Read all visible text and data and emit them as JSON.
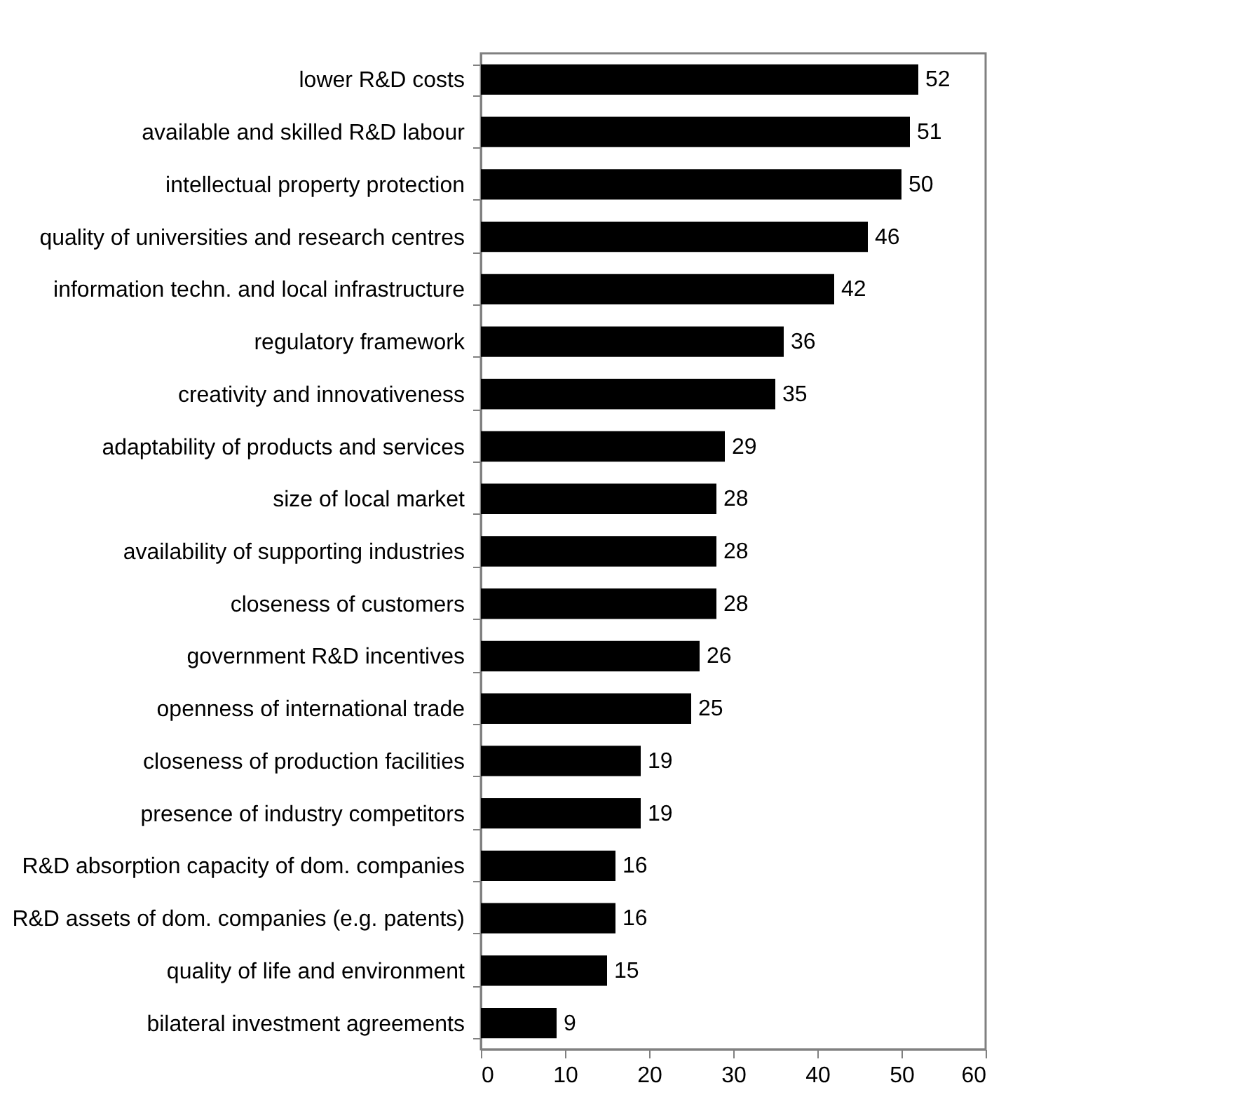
{
  "chart_data": {
    "type": "bar",
    "orientation": "horizontal",
    "categories": [
      "lower R&D costs",
      "available and skilled R&D labour",
      "intellectual property protection",
      "quality of universities and research centres",
      "information techn. and local infrastructure",
      "regulatory framework",
      "creativity and innovativeness",
      "adaptability of products and services",
      "size of local market",
      "availability of supporting industries",
      "closeness of customers",
      "government R&D incentives",
      "openness of international trade",
      "closeness of production facilities",
      "presence of industry competitors",
      "R&D absorption capacity of dom. companies",
      "R&D assets of dom. companies (e.g. patents)",
      "quality of life and environment",
      "bilateral investment agreements"
    ],
    "values": [
      52,
      51,
      50,
      46,
      42,
      36,
      35,
      29,
      28,
      28,
      28,
      26,
      25,
      19,
      19,
      16,
      16,
      15,
      9
    ],
    "color": "#000000",
    "xlim": [
      0,
      60
    ],
    "xticks": [
      0,
      10,
      20,
      30,
      40,
      50,
      60
    ],
    "grid": false,
    "data_labels": true
  }
}
